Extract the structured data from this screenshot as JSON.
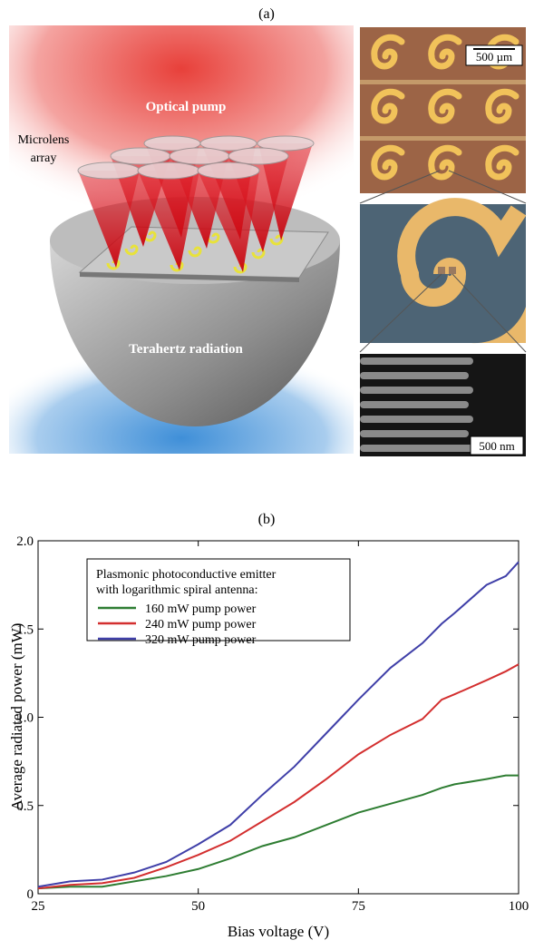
{
  "panel_a": {
    "label": "(a)",
    "optical_pump": "Optical pump",
    "microlens": [
      "Microlens",
      "array"
    ],
    "terahertz": "Terahertz radiation",
    "scale_top": "500 µm",
    "scale_bottom": "500 nm"
  },
  "chart_data": {
    "type": "line",
    "label": "(b)",
    "x_label": "Bias voltage (V)",
    "y_label": "Average radiated power (mW)",
    "legend_title": [
      "Plasmonic photoconductive emitter",
      "with logarithmic spiral antenna:"
    ],
    "legend_position": "upper left",
    "x": [
      25,
      30,
      35,
      40,
      45,
      50,
      55,
      60,
      65,
      70,
      75,
      80,
      85,
      88,
      90,
      95,
      98,
      100
    ],
    "series": [
      {
        "name": "160 mW pump power",
        "color": "#2e7d32",
        "values": [
          0.03,
          0.04,
          0.04,
          0.07,
          0.1,
          0.14,
          0.2,
          0.27,
          0.32,
          0.39,
          0.46,
          0.51,
          0.56,
          0.6,
          0.62,
          0.65,
          0.67,
          0.67
        ]
      },
      {
        "name": "240 mW pump power",
        "color": "#d32f2f",
        "values": [
          0.03,
          0.05,
          0.06,
          0.09,
          0.15,
          0.22,
          0.3,
          0.41,
          0.52,
          0.65,
          0.79,
          0.9,
          0.99,
          1.1,
          1.13,
          1.21,
          1.26,
          1.3
        ]
      },
      {
        "name": "320 mW pump power",
        "color": "#3f3fa8",
        "values": [
          0.04,
          0.07,
          0.08,
          0.12,
          0.18,
          0.28,
          0.39,
          0.56,
          0.72,
          0.91,
          1.1,
          1.28,
          1.42,
          1.53,
          1.59,
          1.75,
          1.8,
          1.88
        ]
      }
    ],
    "xlim": [
      25,
      100
    ],
    "xticks": [
      25,
      50,
      75,
      100
    ],
    "ylim": [
      0,
      2
    ],
    "yticks": [
      0,
      0.5,
      {
        "value": 1,
        "label": "1.0"
      },
      1.5,
      {
        "value": 2,
        "label": "2.0"
      }
    ]
  }
}
